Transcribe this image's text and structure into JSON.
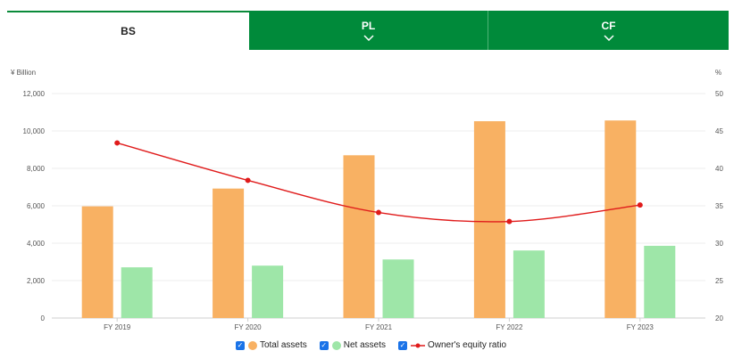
{
  "tabs": [
    {
      "label": "BS",
      "active": true
    },
    {
      "label": "PL",
      "active": false
    },
    {
      "label": "CF",
      "active": false
    }
  ],
  "chart_data": {
    "type": "bar",
    "categories": [
      "FY 2019",
      "FY 2020",
      "FY 2021",
      "FY 2022",
      "FY 2023"
    ],
    "series": [
      {
        "name": "Total assets",
        "type": "bar",
        "axis": "left",
        "color": "#f8b163",
        "values": [
          5970,
          6920,
          8700,
          10520,
          10560
        ]
      },
      {
        "name": "Net assets",
        "type": "bar",
        "axis": "left",
        "color": "#9ee6a8",
        "values": [
          2710,
          2800,
          3130,
          3610,
          3860
        ]
      },
      {
        "name": "Owner's equity ratio",
        "type": "line",
        "axis": "right",
        "color": "#e01b1b",
        "values": [
          43.4,
          38.4,
          34.1,
          32.9,
          35.1
        ]
      }
    ],
    "ylabel_left": "¥ Billion",
    "ylabel_right": "%",
    "ylim_left": [
      0,
      12000
    ],
    "ylim_right": [
      20,
      50
    ],
    "yticks_left": [
      "0",
      "2,000",
      "4,000",
      "6,000",
      "8,000",
      "10,000",
      "12,000"
    ],
    "yticks_right": [
      "20",
      "25",
      "30",
      "35",
      "40",
      "45",
      "50"
    ],
    "grid": true,
    "legend_position": "bottom"
  },
  "legend": {
    "items": [
      {
        "label": "Total assets",
        "color": "#f8b163",
        "symbol": "dot"
      },
      {
        "label": "Net assets",
        "color": "#9ee6a8",
        "symbol": "dot"
      },
      {
        "label": "Owner's equity ratio",
        "color": "#e01b1b",
        "symbol": "line"
      }
    ],
    "checkbox_color": "#1a73e8"
  },
  "icons": {
    "tab_chevron": "chevron-down-icon",
    "legend_checkbox": "checkbox-checked-icon"
  }
}
